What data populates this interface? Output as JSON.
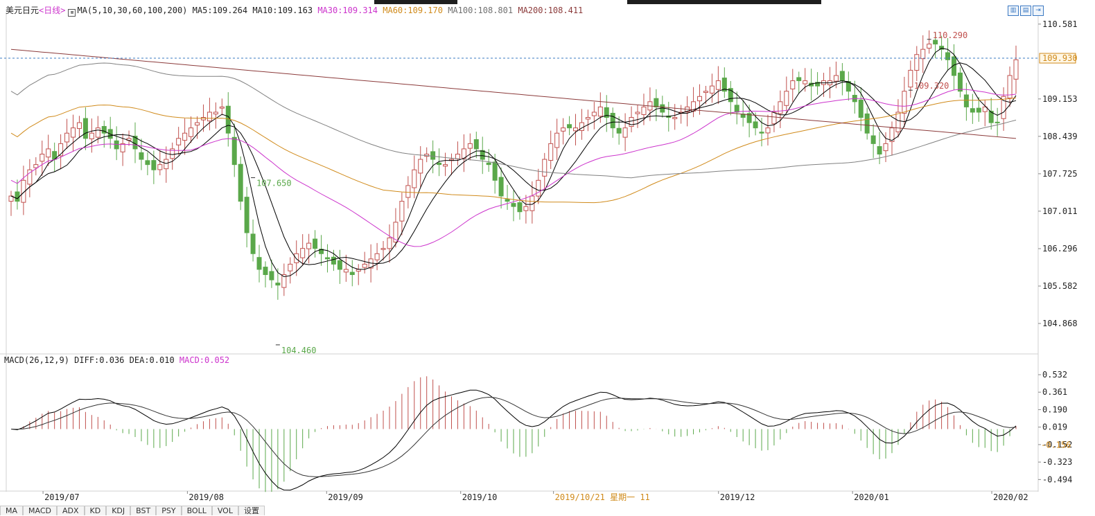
{
  "header": {
    "symbol": "美元日元",
    "period": "<日线>",
    "ma_spec": "MA(5,10,30,60,100,200)",
    "ma5": "MA5:109.264",
    "ma10": "MA10:109.163",
    "ma30": "MA30:109.314",
    "ma60": "MA60:109.170",
    "ma100": "MA100:108.801",
    "ma200": "MA200:108.411"
  },
  "macd_header": {
    "spec": "MACD(26,12,9)",
    "diff": "DIFF:0.036",
    "dea": "DEA:0.010",
    "macd": "MACD:0.052"
  },
  "colors": {
    "up": "#c0504d",
    "down": "#5aa84a",
    "ma5": "#000000",
    "ma10": "#000000",
    "ma30": "#cc33cc",
    "ma60": "#d08a1a",
    "ma100": "#808080",
    "ma200": "#8b3a3a",
    "grid": "#e4e4e4",
    "dashed": "#3a78c2",
    "axis_text": "#222222",
    "date_highlight": "#d08a1a",
    "annotation_high": "#c0504d",
    "annotation_low": "#5aa84a"
  },
  "toolbar_icons": [
    "chart-type-icon",
    "layout-icon",
    "next-icon"
  ],
  "bottom_tabs": [
    "MA",
    "MACD",
    "ADX",
    "KD",
    "KDJ",
    "BST",
    "PSY",
    "BOLL",
    "VOL",
    "设置"
  ],
  "chart_data": [
    {
      "type": "candlestick",
      "title": "美元日元<日线>",
      "y_ticks": [
        "110.581",
        "109.153",
        "108.439",
        "107.725",
        "107.011",
        "106.296",
        "105.582",
        "104.868"
      ],
      "ylim": [
        104.3,
        110.75
      ],
      "current_price": "109.930",
      "annotations": [
        {
          "label": "109.320",
          "value": 109.32,
          "kind": "high"
        },
        {
          "label": "110.290",
          "value": 110.29,
          "kind": "high"
        },
        {
          "label": "104.460",
          "value": 104.46,
          "kind": "low"
        },
        {
          "label": "107.650",
          "value": 107.65,
          "kind": "low"
        }
      ],
      "x_labels": [
        "2019/07",
        "2019/08",
        "2019/09",
        "2019/10",
        "2019/10/21 星期一 11",
        "2019/12",
        "2020/01",
        "2020/02"
      ],
      "close_path": [
        107.3,
        107.2,
        107.6,
        107.8,
        107.9,
        108.1,
        108.2,
        108.0,
        108.3,
        108.5,
        108.6,
        108.7,
        108.4,
        108.5,
        108.6,
        108.5,
        108.4,
        108.2,
        108.3,
        108.4,
        108.2,
        108.0,
        107.9,
        107.8,
        107.9,
        108.0,
        108.2,
        108.4,
        108.5,
        108.6,
        108.7,
        108.8,
        108.9,
        108.9,
        109.0,
        108.5,
        107.9,
        107.2,
        106.6,
        106.2,
        105.9,
        105.8,
        105.7,
        105.6,
        105.8,
        106.0,
        106.2,
        106.3,
        106.4,
        106.3,
        106.2,
        106.1,
        106.0,
        105.9,
        105.9,
        105.8,
        105.9,
        106.0,
        106.1,
        106.2,
        106.3,
        106.5,
        106.8,
        107.2,
        107.5,
        107.8,
        108.0,
        108.1,
        108.0,
        107.9,
        107.9,
        108.0,
        108.1,
        108.2,
        108.3,
        108.2,
        108.0,
        107.9,
        107.6,
        107.3,
        107.2,
        107.1,
        107.0,
        107.1,
        107.3,
        107.6,
        108.0,
        108.3,
        108.5,
        108.6,
        108.6,
        108.6,
        108.7,
        108.8,
        108.9,
        109.0,
        108.8,
        108.6,
        108.5,
        108.6,
        108.8,
        108.9,
        109.0,
        109.1,
        109.0,
        108.9,
        108.8,
        108.8,
        108.9,
        109.0,
        109.1,
        109.2,
        109.3,
        109.4,
        109.5,
        109.3,
        109.1,
        108.9,
        108.8,
        108.7,
        108.6,
        108.5,
        108.6,
        108.9,
        109.1,
        109.3,
        109.5,
        109.5,
        109.5,
        109.4,
        109.4,
        109.5,
        109.5,
        109.6,
        109.5,
        109.3,
        109.1,
        108.8,
        108.5,
        108.3,
        108.1,
        108.3,
        108.6,
        108.9,
        109.3,
        109.7,
        110.0,
        110.1,
        110.2,
        110.2,
        110.1,
        109.9,
        109.6,
        109.3,
        109.0,
        108.9,
        108.9,
        109.0,
        108.7,
        108.7,
        109.2,
        109.6,
        109.9
      ]
    },
    {
      "type": "macd",
      "title": "MACD(26,12,9)",
      "y_ticks": [
        "0.532",
        "0.361",
        "0.190",
        "0.019",
        "-0.152",
        "-0.323",
        "-0.494"
      ],
      "ylim": [
        -0.6,
        0.62
      ],
      "current_value": "-0.156",
      "diff": 0.036,
      "dea": 0.01,
      "macd": 0.052
    }
  ]
}
